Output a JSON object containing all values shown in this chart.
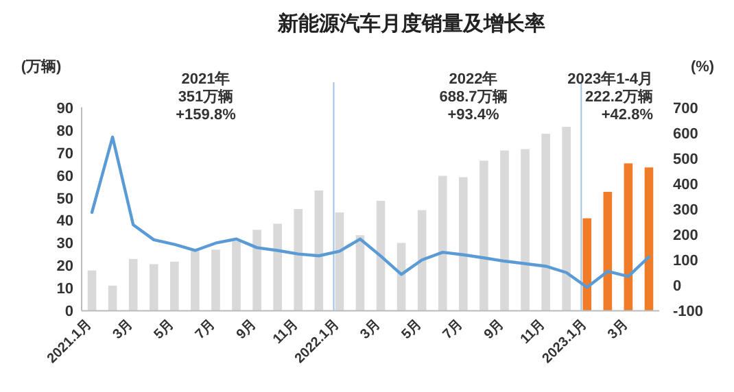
{
  "chart_data": {
    "type": "bar",
    "title": "新能源汽车月度销量及增长率",
    "ylabel": "(万辆)",
    "y2label": "(%)",
    "categories": [
      "2021.1月",
      null,
      "3月",
      null,
      "5月",
      null,
      "7月",
      null,
      "9月",
      null,
      "11月",
      null,
      "2022.1月",
      null,
      "3月",
      null,
      "5月",
      null,
      "7月",
      null,
      "9月",
      null,
      "11月",
      null,
      "2023.1月",
      null,
      "3月",
      null
    ],
    "series": [
      {
        "values": [
          17.8,
          11.1,
          22.9,
          20.6,
          21.7,
          27.3,
          27.0,
          30.8,
          35.8,
          38.5,
          45.0,
          53.2,
          43.5,
          33.4,
          48.6,
          30.0,
          44.5,
          59.7,
          59.1,
          66.4,
          70.9,
          71.5,
          78.3,
          81.4,
          40.9,
          52.6,
          65.2,
          63.4
        ],
        "colors": [
          "#d9d9d9",
          "#d9d9d9",
          "#d9d9d9",
          "#d9d9d9",
          "#d9d9d9",
          "#d9d9d9",
          "#d9d9d9",
          "#d9d9d9",
          "#d9d9d9",
          "#d9d9d9",
          "#d9d9d9",
          "#d9d9d9",
          "#d9d9d9",
          "#d9d9d9",
          "#d9d9d9",
          "#d9d9d9",
          "#d9d9d9",
          "#d9d9d9",
          "#d9d9d9",
          "#d9d9d9",
          "#d9d9d9",
          "#d9d9d9",
          "#d9d9d9",
          "#d9d9d9",
          "#f07c2a",
          "#f07c2a",
          "#f07c2a",
          "#f07c2a"
        ]
      },
      {
        "type": "line",
        "axis": "y2",
        "color": "#5b9bd5",
        "values": [
          287,
          583,
          238,
          179,
          161,
          137,
          166,
          182,
          148,
          137,
          123,
          116,
          134,
          182,
          115,
          43,
          100,
          130,
          120,
          108,
          95,
          85,
          75,
          50,
          -8,
          55,
          35,
          112
        ]
      }
    ],
    "ylim": [
      0,
      90
    ],
    "yticks": [
      0,
      10,
      20,
      30,
      40,
      50,
      60,
      70,
      80,
      90
    ],
    "y2lim": [
      -100,
      700
    ],
    "y2ticks": [
      -100,
      0,
      100,
      200,
      300,
      400,
      500,
      600,
      700
    ],
    "ref_lines": [
      {
        "axis": "x",
        "value": "2022.1月",
        "color": "#9dc3e6"
      },
      {
        "axis": "x",
        "value": "2023.1月",
        "color": "#9dc3e6"
      }
    ],
    "annotations": [
      "2021年\n351万辆\n+159.8%",
      "2022年\n688.7万辆\n+93.4%",
      "2023年1-4月\n222.2万辆\n+42.8%"
    ],
    "grid": false
  }
}
